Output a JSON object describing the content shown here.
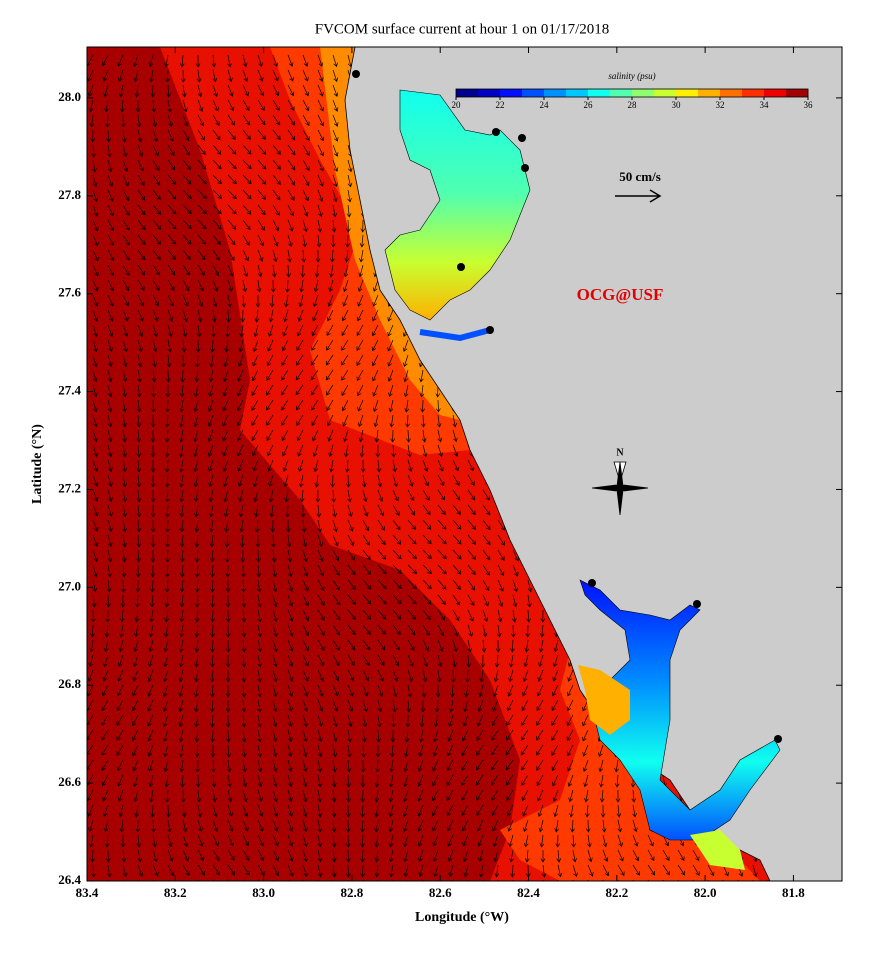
{
  "chart_data": {
    "type": "map",
    "title": "FVCOM surface current at hour 1 on 01/17/2018",
    "x_label": "Longitude (°W)",
    "y_label": "Latitude (°N)",
    "xlim": [
      83.4,
      81.69
    ],
    "ylim": [
      26.4,
      28.104
    ],
    "xticks": [
      {
        "value": 83.4,
        "label": "83.4"
      },
      {
        "value": 83.2,
        "label": "83.2"
      },
      {
        "value": 83.0,
        "label": "83.0"
      },
      {
        "value": 82.8,
        "label": "82.8"
      },
      {
        "value": 82.6,
        "label": "82.6"
      },
      {
        "value": 82.4,
        "label": "82.4"
      },
      {
        "value": 82.2,
        "label": "82.2"
      },
      {
        "value": 82.0,
        "label": "82.0"
      },
      {
        "value": 81.8,
        "label": "81.8"
      }
    ],
    "yticks": [
      {
        "value": 26.4,
        "label": "26.4"
      },
      {
        "value": 26.6,
        "label": "26.6"
      },
      {
        "value": 26.8,
        "label": "26.8"
      },
      {
        "value": 27.0,
        "label": "27.0"
      },
      {
        "value": 27.2,
        "label": "27.2"
      },
      {
        "value": 27.4,
        "label": "27.4"
      },
      {
        "value": 27.6,
        "label": "27.6"
      },
      {
        "value": 27.8,
        "label": "27.8"
      },
      {
        "value": 28.0,
        "label": "28.0"
      }
    ],
    "colorbar": {
      "label": "salinity (psu)",
      "lim": [
        20,
        36
      ],
      "ticks": [
        20,
        22,
        24,
        26,
        28,
        30,
        32,
        34,
        36
      ],
      "colors": [
        "#00008f",
        "#0000c0",
        "#0010ff",
        "#0050ff",
        "#0090ff",
        "#00c8ff",
        "#10ffef",
        "#50ffaf",
        "#90ff6f",
        "#c8ff30",
        "#ffef00",
        "#ffb000",
        "#ff7000",
        "#ff3000",
        "#ef0000",
        "#a00000"
      ]
    },
    "scale_label": "50 cm/s",
    "watermark": "OCG@USF",
    "north_label": "N"
  }
}
